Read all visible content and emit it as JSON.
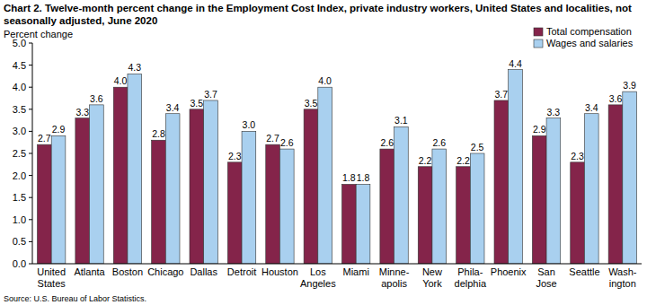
{
  "chart_data": {
    "type": "bar",
    "title": "Chart 2. Twelve-month percent change in the Employment Cost Index, private industry workers, United States and localities, not seasonally adjusted, June 2020",
    "y_label": "Percent change",
    "source": "Source: U.S. Bureau of Labor Statistics.",
    "categories": [
      "United\nStates",
      "Atlanta",
      "Boston",
      "Chicago",
      "Dallas",
      "Detroit",
      "Houston",
      "Los\nAngeles",
      "Miami",
      "Minne-\napolis",
      "New\nYork",
      "Phila-\ndelphia",
      "Phoenix",
      "San\nJose",
      "Seattle",
      "Wash-\nington"
    ],
    "series": [
      {
        "name": "Total compensation",
        "color": "#84244a",
        "values": [
          2.7,
          3.3,
          4.0,
          2.8,
          3.5,
          2.3,
          2.7,
          3.5,
          1.8,
          2.6,
          2.2,
          2.2,
          3.7,
          2.9,
          2.3,
          3.6
        ],
        "value_labels": [
          "2.7",
          "3.3",
          "4.0",
          "2.8",
          "3.5",
          "2.3",
          "2.7",
          "3.5",
          "1.8",
          "2.6",
          "2.2",
          "2.2",
          "3.7",
          "2.9",
          "2.3",
          "3.6"
        ]
      },
      {
        "name": "Wages and salaries",
        "color": "#a9d0ef",
        "values": [
          2.9,
          3.6,
          4.3,
          3.4,
          3.7,
          3.0,
          2.6,
          4.0,
          1.8,
          3.1,
          2.6,
          2.5,
          4.4,
          3.3,
          3.4,
          3.9
        ],
        "value_labels": [
          "2.9",
          "3.6",
          "4.3",
          "3.4",
          "3.7",
          "3.0",
          "2.6",
          "4.0",
          "1.8",
          "3.1",
          "2.6",
          "2.5",
          "4.4",
          "3.3",
          "3.4",
          "3.9"
        ]
      }
    ],
    "ylim": [
      0,
      5
    ],
    "yticks": [
      {
        "value": 0,
        "label": "0.0"
      },
      {
        "value": 0.5,
        "label": "0.5"
      },
      {
        "value": 1,
        "label": "1.0"
      },
      {
        "value": 1.5,
        "label": "1.5"
      },
      {
        "value": 2,
        "label": "2.0"
      },
      {
        "value": 2.5,
        "label": "2.5"
      },
      {
        "value": 3,
        "label": "3.0"
      },
      {
        "value": 3.5,
        "label": "3.5"
      },
      {
        "value": 4,
        "label": "4.0"
      },
      {
        "value": 4.5,
        "label": "4.5"
      },
      {
        "value": 5,
        "label": "5.0"
      }
    ],
    "grid": false,
    "legend": "top-right",
    "data_labels": true
  }
}
